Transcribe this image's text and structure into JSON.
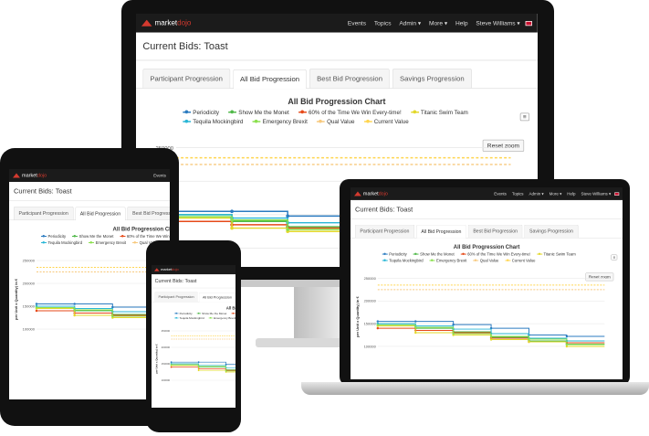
{
  "app": {
    "logo_text_a": "market",
    "logo_text_b": "dojo",
    "nav": [
      "Events",
      "Topics",
      "Admin ▾",
      "More ▾",
      "Help",
      "Steve Williams ▾"
    ],
    "page_title": "Current Bids: Toast",
    "tabs": [
      "Participant Progression",
      "All Bid Progression",
      "Best Bid Progression",
      "Savings Progression"
    ],
    "active_tab": 1
  },
  "chart_data": {
    "type": "line",
    "title": "All Bid Progression Chart",
    "ylabel": "per Unit x Quantity) in €",
    "yticks": [
      "250000",
      "200000",
      "150000",
      "100000"
    ],
    "ylim": [
      100000,
      250000
    ],
    "reset_label": "Reset zoom",
    "menu_icon": "≡",
    "series": [
      {
        "name": "Periodicity",
        "color": "#2b7bc0",
        "values": [
          155000,
          155000,
          148000,
          140000,
          125000,
          122000
        ]
      },
      {
        "name": "Show Me the Monet",
        "color": "#4fb848",
        "values": [
          150000,
          140000,
          132000,
          120000,
          112000,
          105000
        ]
      },
      {
        "name": "60% of the Time We Win Every-time!",
        "color": "#e64a19",
        "values": [
          140000,
          135000,
          130000,
          118000,
          110000,
          108000
        ]
      },
      {
        "name": "Titanic Swim Team",
        "color": "#e3d82a",
        "values": [
          145000,
          130000,
          125000,
          115000,
          110000,
          100000
        ]
      },
      {
        "name": "Tequila Mockingbird",
        "color": "#29b6d6",
        "values": [
          150000,
          145000,
          138000,
          128000,
          118000,
          112000
        ]
      },
      {
        "name": "Emergency Brexit",
        "color": "#8be04e",
        "values": [
          147000,
          142000,
          128000,
          122000,
          116000,
          104000
        ]
      },
      {
        "name": "Qual Value",
        "color": "#f7c97e",
        "values": [
          225000,
          225000,
          225000,
          225000,
          225000,
          225000
        ],
        "dashed": true
      },
      {
        "name": "Current Value",
        "color": "#ffd54f",
        "values": [
          235000,
          235000,
          235000,
          235000,
          235000,
          235000
        ],
        "dashed": true
      }
    ]
  }
}
